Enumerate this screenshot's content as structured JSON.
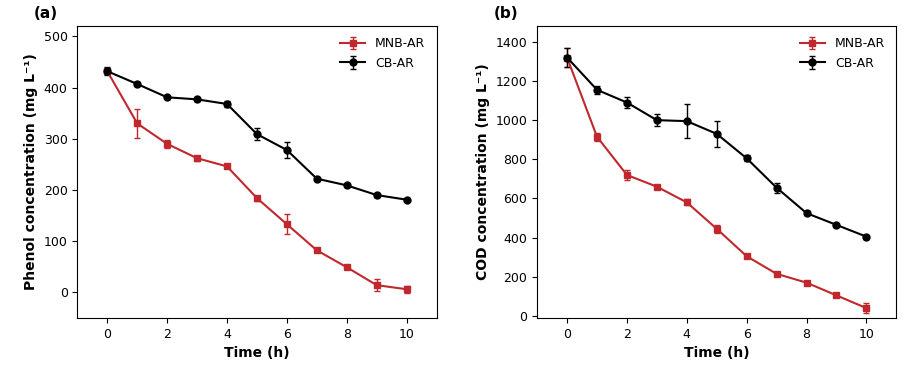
{
  "chart_data": [
    {
      "type": "line",
      "title": "(a)",
      "x_label": "Time (h)",
      "y_label": "Phenol concentration (mg L⁻¹)",
      "x": [
        0,
        1,
        2,
        3,
        4,
        5,
        6,
        7,
        8,
        9,
        10
      ],
      "series": [
        {
          "name": "MNB-AR",
          "color": "#c0282d",
          "marker": "square",
          "line_style": "solid",
          "values": [
            432,
            330,
            290,
            262,
            246,
            184,
            133,
            82,
            49,
            14,
            6
          ],
          "errors": [
            6,
            28,
            8,
            5,
            4,
            5,
            20,
            4,
            4,
            12,
            7
          ]
        },
        {
          "name": "CB-AR",
          "color": "#000000",
          "marker": "circle",
          "line_style": "solid",
          "values": [
            432,
            407,
            381,
            377,
            368,
            309,
            278,
            222,
            209,
            190,
            181
          ],
          "errors": [
            8,
            3,
            3,
            3,
            5,
            12,
            15,
            3,
            3,
            3,
            3
          ]
        }
      ],
      "xlim": [
        -1,
        11
      ],
      "xticks": [
        0,
        2,
        4,
        6,
        8,
        10
      ],
      "ylim": [
        -50,
        520
      ],
      "yticks": [
        0,
        100,
        200,
        300,
        400,
        500
      ],
      "legend": "upper right",
      "grid": false
    },
    {
      "type": "line",
      "title": "(b)",
      "x_label": "Time (h)",
      "y_label": "COD concentration (mg L⁻¹)",
      "x": [
        0,
        1,
        2,
        3,
        4,
        5,
        6,
        7,
        8,
        9,
        10
      ],
      "series": [
        {
          "name": "MNB-AR",
          "color": "#c0282d",
          "marker": "square",
          "line_style": "solid",
          "values": [
            1320,
            915,
            720,
            660,
            580,
            445,
            305,
            215,
            170,
            105,
            40
          ],
          "errors": [
            50,
            20,
            25,
            10,
            15,
            20,
            10,
            10,
            10,
            10,
            25
          ]
        },
        {
          "name": "CB-AR",
          "color": "#000000",
          "marker": "circle",
          "line_style": "solid",
          "values": [
            1320,
            1155,
            1090,
            1000,
            995,
            930,
            805,
            655,
            525,
            465,
            405
          ],
          "errors": [
            50,
            20,
            30,
            30,
            85,
            65,
            15,
            25,
            10,
            10,
            10
          ]
        }
      ],
      "xlim": [
        -1,
        11
      ],
      "xticks": [
        0,
        2,
        4,
        6,
        8,
        10
      ],
      "ylim": [
        -10,
        1480
      ],
      "yticks": [
        0,
        200,
        400,
        600,
        800,
        1000,
        1200,
        1400
      ],
      "legend": "upper right",
      "grid": false
    }
  ]
}
